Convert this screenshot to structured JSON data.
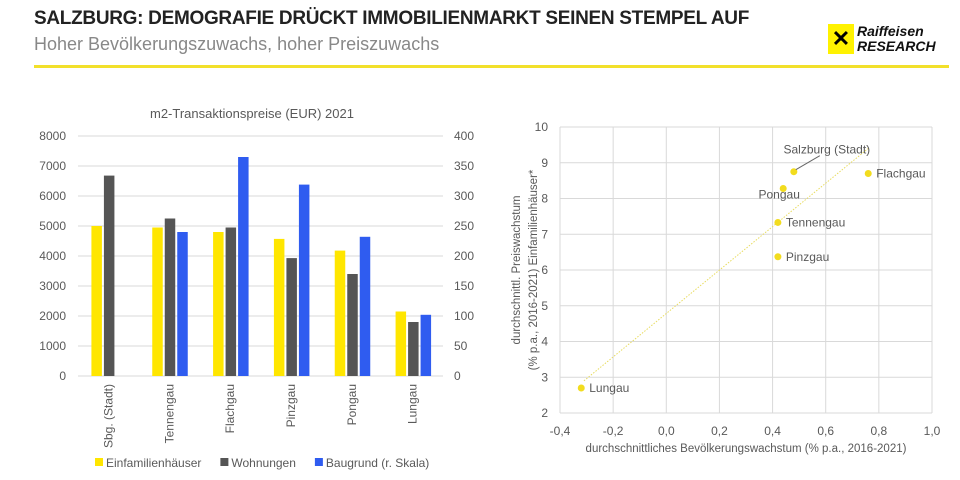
{
  "header": {
    "title": "SALZBURG: DEMOGRAFIE DRÜCKT IMMOBILIENMARKT SEINEN STEMPEL AUF",
    "subtitle": "Hoher Bevölkerungszuwachs, hoher Preiszuwachs",
    "logo_line1": "Raiffeisen",
    "logo_line2": "RESEARCH"
  },
  "chart_data": [
    {
      "type": "bar",
      "title": "m2-Transaktionspreise (EUR) 2021",
      "categories": [
        "Sbg. (Stadt)",
        "Tennengau",
        "Flachgau",
        "Pinzgau",
        "Pongau",
        "Lungau"
      ],
      "ylim": [
        0,
        8000
      ],
      "yticks": [
        0,
        1000,
        2000,
        3000,
        4000,
        5000,
        6000,
        7000,
        8000
      ],
      "y2lim": [
        0,
        400
      ],
      "y2ticks": [
        0,
        50,
        100,
        150,
        200,
        250,
        300,
        350,
        400
      ],
      "legend_position": "bottom",
      "grid": true,
      "series": [
        {
          "name": "Einfamilienhäuser",
          "axis": "left",
          "color": "#ffe600",
          "values": [
            5000,
            4950,
            4800,
            4570,
            4180,
            2150
          ]
        },
        {
          "name": "Wohnungen",
          "axis": "left",
          "color": "#555555",
          "values": [
            6680,
            5250,
            4950,
            3930,
            3400,
            1800
          ]
        },
        {
          "name": "Baugrund (r. Skala)",
          "axis": "right",
          "color": "#2f5cf0",
          "values": [
            null,
            240,
            365,
            319,
            232,
            102
          ]
        }
      ]
    },
    {
      "type": "scatter",
      "xlabel": "durchschnittliches Bevölkerungswachstum (% p.a., 2016-2021)",
      "ylabel": [
        "durchschnittl. Preiswachstum",
        "(% p.a., 2016-2021)  Einfamilienhäuser*"
      ],
      "xlim": [
        -0.4,
        1.0
      ],
      "ylim": [
        2,
        10
      ],
      "xticks": [
        "-0,4",
        "-0,2",
        "0,0",
        "0,2",
        "0,4",
        "0,6",
        "0,8",
        "1,0"
      ],
      "yticks": [
        "2",
        "3",
        "4",
        "5",
        "6",
        "7",
        "8",
        "9",
        "10"
      ],
      "grid": true,
      "color": "#f2dc1e",
      "points": [
        {
          "label": "Salzburg (Stadt)",
          "x": 0.48,
          "y": 8.75
        },
        {
          "label": "Flachgau",
          "x": 0.76,
          "y": 8.7
        },
        {
          "label": "Pongau",
          "x": 0.44,
          "y": 8.28
        },
        {
          "label": "Tennengau",
          "x": 0.42,
          "y": 7.33
        },
        {
          "label": "Pinzgau",
          "x": 0.42,
          "y": 6.37
        },
        {
          "label": "Lungau",
          "x": -0.32,
          "y": 2.7
        }
      ],
      "trendline": {
        "style": "dotted",
        "from": [
          -0.31,
          2.9
        ],
        "to": [
          0.76,
          9.4
        ]
      }
    }
  ]
}
